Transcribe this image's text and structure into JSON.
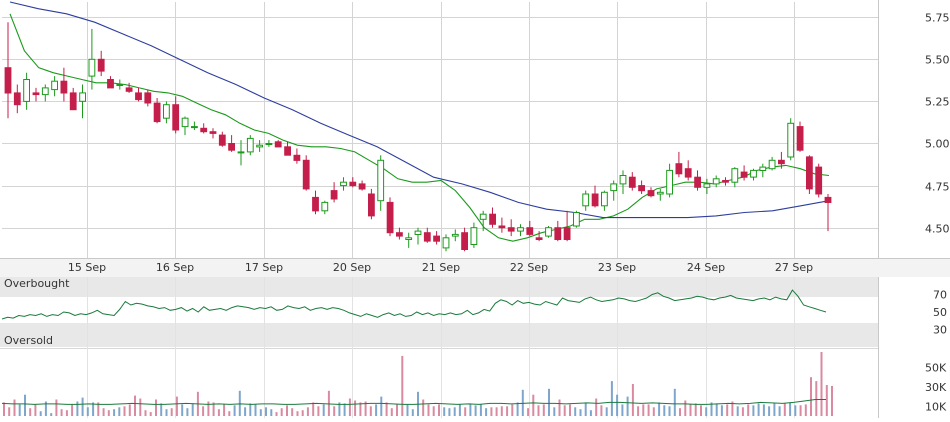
{
  "chart_data": [
    {
      "type": "candlestick",
      "panel": "price",
      "x_labels": [
        "15 Sep",
        "16 Sep",
        "17 Sep",
        "20 Sep",
        "21 Sep",
        "22 Sep",
        "23 Sep",
        "24 Sep",
        "27 Sep"
      ],
      "y_ticks": [
        "5.75",
        "5.50",
        "5.25",
        "5.00",
        "4.75",
        "4.50"
      ],
      "y_tick_values": [
        5.75,
        5.5,
        5.25,
        5.0,
        4.75,
        4.5
      ],
      "ylim": [
        4.32,
        5.84
      ],
      "grid": true,
      "series": [
        {
          "kind": "fast_moving_average",
          "color": "#1a9a1a",
          "values": [
            5.77,
            5.55,
            5.45,
            5.42,
            5.4,
            5.38,
            5.36,
            5.36,
            5.35,
            5.33,
            5.31,
            5.3,
            5.28,
            5.24,
            5.2,
            5.17,
            5.12,
            5.08,
            5.06,
            5.02,
            4.99,
            4.98,
            4.98,
            4.97,
            4.95,
            4.9,
            4.85,
            4.79,
            4.77,
            4.77,
            4.78,
            4.72,
            4.62,
            4.5,
            4.44,
            4.42,
            4.44,
            4.47,
            4.49,
            4.51,
            4.55,
            4.55,
            4.57,
            4.61,
            4.68,
            4.73,
            4.75,
            4.77,
            4.77,
            4.76,
            4.78,
            4.8,
            4.84,
            4.86,
            4.87,
            4.85,
            4.82,
            4.81
          ]
        },
        {
          "kind": "slow_moving_average",
          "color": "#2d3d9e",
          "values": [
            5.84,
            5.8,
            5.77,
            5.72,
            5.65,
            5.58,
            5.5,
            5.42,
            5.35,
            5.27,
            5.2,
            5.12,
            5.05,
            4.98,
            4.89,
            4.8,
            4.76,
            4.71,
            4.65,
            4.61,
            4.59,
            4.56,
            4.56,
            4.56,
            4.56,
            4.57,
            4.59,
            4.6,
            4.63,
            4.66
          ]
        }
      ],
      "candles": [
        [
          5.45,
          5.72,
          5.15,
          5.3
        ],
        [
          5.3,
          5.35,
          5.18,
          5.23
        ],
        [
          5.25,
          5.42,
          5.2,
          5.38
        ],
        [
          5.3,
          5.33,
          5.25,
          5.29
        ],
        [
          5.29,
          5.35,
          5.25,
          5.33
        ],
        [
          5.32,
          5.4,
          5.28,
          5.37
        ],
        [
          5.37,
          5.45,
          5.25,
          5.3
        ],
        [
          5.3,
          5.33,
          5.2,
          5.2
        ],
        [
          5.25,
          5.35,
          5.15,
          5.3
        ],
        [
          5.4,
          5.68,
          5.32,
          5.5
        ],
        [
          5.5,
          5.55,
          5.4,
          5.43
        ],
        [
          5.38,
          5.4,
          5.33,
          5.33
        ],
        [
          5.35,
          5.38,
          5.32,
          5.35
        ],
        [
          5.33,
          5.36,
          5.3,
          5.31
        ],
        [
          5.3,
          5.33,
          5.25,
          5.26
        ],
        [
          5.3,
          5.32,
          5.22,
          5.24
        ],
        [
          5.24,
          5.27,
          5.12,
          5.13
        ],
        [
          5.15,
          5.25,
          5.12,
          5.23
        ],
        [
          5.23,
          5.28,
          5.06,
          5.08
        ],
        [
          5.1,
          5.16,
          5.05,
          5.15
        ],
        [
          5.1,
          5.13,
          5.08,
          5.1
        ],
        [
          5.09,
          5.12,
          5.06,
          5.07
        ],
        [
          5.07,
          5.09,
          5.03,
          5.06
        ],
        [
          5.05,
          5.07,
          4.98,
          4.99
        ],
        [
          5.0,
          5.05,
          4.95,
          4.96
        ],
        [
          4.95,
          5.02,
          4.87,
          4.95
        ],
        [
          4.95,
          5.05,
          4.93,
          5.03
        ],
        [
          4.98,
          5.02,
          4.95,
          4.99
        ],
        [
          5.0,
          5.02,
          4.98,
          5.0
        ],
        [
          5.01,
          5.02,
          4.98,
          4.98
        ],
        [
          4.98,
          5.01,
          4.93,
          4.93
        ],
        [
          4.93,
          4.97,
          4.88,
          4.9
        ],
        [
          4.9,
          4.93,
          4.72,
          4.73
        ],
        [
          4.68,
          4.72,
          4.58,
          4.6
        ],
        [
          4.6,
          4.66,
          4.58,
          4.65
        ],
        [
          4.72,
          4.77,
          4.65,
          4.67
        ],
        [
          4.75,
          4.8,
          4.72,
          4.77
        ],
        [
          4.77,
          4.8,
          4.74,
          4.75
        ],
        [
          4.76,
          4.78,
          4.72,
          4.73
        ],
        [
          4.7,
          4.73,
          4.55,
          4.57
        ],
        [
          4.66,
          4.93,
          4.6,
          4.9
        ],
        [
          4.65,
          4.68,
          4.45,
          4.47
        ],
        [
          4.47,
          4.5,
          4.43,
          4.45
        ],
        [
          4.43,
          4.47,
          4.38,
          4.44
        ],
        [
          4.46,
          4.5,
          4.4,
          4.48
        ],
        [
          4.47,
          4.5,
          4.41,
          4.42
        ],
        [
          4.45,
          4.48,
          4.4,
          4.42
        ],
        [
          4.38,
          4.46,
          4.36,
          4.44
        ],
        [
          4.45,
          4.49,
          4.42,
          4.46
        ],
        [
          4.47,
          4.5,
          4.36,
          4.37
        ],
        [
          4.4,
          4.53,
          4.38,
          4.5
        ],
        [
          4.55,
          4.6,
          4.48,
          4.58
        ],
        [
          4.58,
          4.62,
          4.5,
          4.52
        ],
        [
          4.51,
          4.56,
          4.47,
          4.5
        ],
        [
          4.5,
          4.55,
          4.45,
          4.48
        ],
        [
          4.48,
          4.52,
          4.45,
          4.5
        ],
        [
          4.5,
          4.54,
          4.45,
          4.46
        ],
        [
          4.44,
          4.48,
          4.42,
          4.43
        ],
        [
          4.45,
          4.51,
          4.44,
          4.5
        ],
        [
          4.5,
          4.54,
          4.42,
          4.43
        ],
        [
          4.5,
          4.6,
          4.42,
          4.43
        ],
        [
          4.51,
          4.6,
          4.5,
          4.59
        ],
        [
          4.63,
          4.72,
          4.6,
          4.7
        ],
        [
          4.7,
          4.75,
          4.62,
          4.63
        ],
        [
          4.63,
          4.72,
          4.6,
          4.71
        ],
        [
          4.72,
          4.78,
          4.66,
          4.76
        ],
        [
          4.76,
          4.84,
          4.7,
          4.81
        ],
        [
          4.8,
          4.83,
          4.72,
          4.74
        ],
        [
          4.75,
          4.78,
          4.7,
          4.72
        ],
        [
          4.72,
          4.74,
          4.68,
          4.69
        ],
        [
          4.7,
          4.73,
          4.66,
          4.71
        ],
        [
          4.7,
          4.88,
          4.68,
          4.84
        ],
        [
          4.88,
          4.95,
          4.8,
          4.82
        ],
        [
          4.85,
          4.9,
          4.78,
          4.8
        ],
        [
          4.8,
          4.84,
          4.72,
          4.74
        ],
        [
          4.74,
          4.79,
          4.7,
          4.76
        ],
        [
          4.76,
          4.81,
          4.74,
          4.79
        ],
        [
          4.78,
          4.8,
          4.75,
          4.77
        ],
        [
          4.77,
          4.86,
          4.74,
          4.85
        ],
        [
          4.83,
          4.87,
          4.78,
          4.8
        ],
        [
          4.8,
          4.85,
          4.78,
          4.84
        ],
        [
          4.84,
          4.88,
          4.8,
          4.86
        ],
        [
          4.85,
          4.92,
          4.84,
          4.9
        ],
        [
          4.9,
          4.95,
          4.85,
          4.88
        ],
        [
          4.92,
          5.15,
          4.9,
          5.12
        ],
        [
          5.1,
          5.13,
          4.95,
          4.96
        ],
        [
          4.92,
          4.93,
          4.7,
          4.73
        ],
        [
          4.86,
          4.88,
          4.68,
          4.7
        ],
        [
          4.68,
          4.7,
          4.48,
          4.65
        ]
      ]
    },
    {
      "type": "line",
      "panel": "oscillator",
      "y_ticks": [
        "70",
        "50",
        "30"
      ],
      "y_tick_values": [
        70,
        50,
        30
      ],
      "ylim": [
        10,
        90
      ],
      "band_labels": [
        "Overbought",
        "Oversold"
      ],
      "band_thresholds": [
        70,
        30
      ],
      "series": [
        {
          "color": "#1a7a3c",
          "values": [
            42,
            44,
            43,
            46,
            45,
            47,
            46,
            48,
            45,
            47,
            46,
            50,
            49,
            46,
            48,
            47,
            49,
            52,
            48,
            47,
            46,
            53,
            62,
            58,
            60,
            59,
            57,
            56,
            54,
            55,
            52,
            53,
            55,
            51,
            54,
            50,
            56,
            52,
            53,
            54,
            52,
            55,
            57,
            56,
            55,
            53,
            55,
            54,
            56,
            52,
            53,
            57,
            55,
            54,
            56,
            52,
            54,
            55,
            53,
            55,
            54,
            52,
            49,
            47,
            45,
            48,
            46,
            44,
            47,
            49,
            46,
            48,
            45,
            46,
            50,
            47,
            49,
            46,
            48,
            47,
            49,
            47,
            48,
            52,
            47,
            49,
            53,
            51,
            60,
            64,
            62,
            58,
            63,
            60,
            61,
            59,
            58,
            62,
            60,
            58,
            66,
            63,
            62,
            61,
            65,
            67,
            64,
            62,
            63,
            64,
            66,
            65,
            63,
            62,
            64,
            66,
            70,
            72,
            68,
            66,
            63,
            64,
            65,
            66,
            68,
            67,
            65,
            64,
            66,
            67,
            69,
            66,
            65,
            64,
            63,
            65,
            66,
            64,
            67,
            65,
            64,
            75,
            68,
            58,
            56,
            54,
            52,
            50
          ]
        }
      ]
    },
    {
      "type": "bar",
      "panel": "volume",
      "y_ticks": [
        "50K",
        "30K",
        "10K"
      ],
      "y_tick_values": [
        50000,
        30000,
        10000
      ],
      "ylim": [
        0,
        66000
      ],
      "colors": {
        "up": "#7ea6cc",
        "down": "#d98aa0"
      },
      "series": [
        {
          "kind": "volume",
          "values": [
            14000,
            9000,
            17000,
            12000,
            22000,
            8000,
            12000,
            5000,
            15000,
            3000,
            17000,
            7000,
            6000,
            12000,
            15000,
            19000,
            9000,
            14000,
            14000,
            8000,
            6000,
            7000,
            9000,
            10000,
            12000,
            21000,
            18000,
            6000,
            4000,
            17000,
            13000,
            7000,
            8000,
            20000,
            12000,
            8000,
            13000,
            25000,
            10000,
            15000,
            14000,
            7000,
            12000,
            5000,
            11000,
            26000,
            9000,
            13000,
            12000,
            7000,
            9000,
            7000,
            4000,
            8000,
            11000,
            8000,
            5000,
            6000,
            9000,
            14000,
            10000,
            12000,
            26000,
            10000,
            14000,
            13000,
            18000,
            16000,
            14000,
            15000,
            10000,
            12000,
            20000,
            14000,
            8000,
            12000,
            62000,
            12000,
            7000,
            25000,
            17000,
            12000,
            10000,
            12000,
            9000,
            8000,
            9000,
            12000,
            9000,
            13000,
            11000,
            12000,
            8000,
            9000,
            9000,
            10000,
            10000,
            12000,
            14000,
            27000,
            8000,
            22000,
            11000,
            12000,
            28000,
            9000,
            17000,
            11000,
            12000,
            9000,
            7000,
            14000,
            6000,
            18000,
            11000,
            9000,
            36000,
            22000,
            12000,
            20000,
            33000,
            10000,
            12000,
            12000,
            9000,
            14000,
            11000,
            10000,
            28000,
            8000,
            16000,
            12000,
            13000,
            11000,
            9000,
            14000,
            13000,
            11000,
            12000,
            15000,
            10000,
            9000,
            12000,
            11000,
            13000,
            12000,
            10000,
            13000,
            10000,
            13000,
            14000,
            11000,
            11000,
            12000,
            40000,
            36000,
            66000,
            32000,
            31000
          ]
        },
        {
          "kind": "volume_moving_average",
          "color": "#1a7a3c",
          "values": [
            13000,
            12500,
            12500,
            12000,
            12500,
            12500,
            12000,
            12000,
            12500,
            12000,
            12000,
            12500,
            13000,
            12500,
            12000,
            12000,
            12500,
            13000,
            12500,
            12000,
            12500,
            12000,
            12500,
            12000,
            12500,
            12500,
            12000,
            12000,
            12500,
            13000,
            12500,
            12000,
            12000,
            12500,
            13000,
            13000,
            12500,
            12000,
            12000,
            12500,
            13000,
            12500,
            12000,
            12500,
            12000,
            13000,
            13000,
            12500,
            13000,
            13500,
            13000,
            13000,
            12500,
            13000,
            13500,
            13000,
            14000,
            14000,
            13500,
            13000,
            13500,
            13000,
            12500,
            12500,
            12000,
            12000,
            12500,
            13000,
            12500,
            13000,
            14000,
            13500,
            13000,
            14000,
            15500,
            17000,
            17000
          ]
        }
      ]
    }
  ]
}
